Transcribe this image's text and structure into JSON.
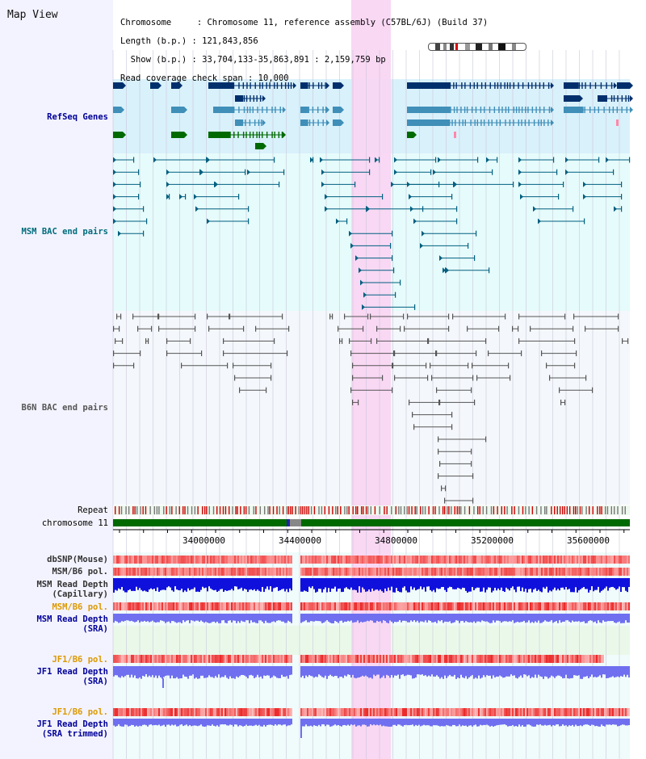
{
  "header": {
    "title": "Map View",
    "lines": [
      "Chromosome     : Chromosome 11, reference assembly (C57BL/6J) (Build 37)",
      "Length (b.p.) : 121,843,856",
      "  Show (b.p.) : 33,704,133-35,863,891 : 2,159,759 bp",
      "Read coverage check span : 10,000"
    ]
  },
  "axis": {
    "ticks": [
      "34000000",
      "34400000",
      "34800000",
      "35200000",
      "35600000"
    ]
  },
  "tracks": {
    "refseq": "RefSeq Genes",
    "msm_bac": "MSM BAC end pairs",
    "b6n_bac": "B6N BAC end pairs",
    "repeat": "Repeat",
    "chromosome": "chromosome 11",
    "dbsnp": "dbSNP(Mouse)",
    "msm_b6_pol_1": "MSM/B6 pol.",
    "msm_depth_cap": "MSM Read Depth\n(Capillary)",
    "msm_b6_pol_2": "MSM/B6 pol.",
    "msm_depth_sra": "MSM Read Depth\n(SRA)",
    "jf1_b6_pol_1": "JF1/B6 pol.",
    "jf1_depth_sra": "JF1 Read Depth\n(SRA)",
    "jf1_b6_pol_2": "JF1/B6 pol.",
    "jf1_depth_trim": "JF1 Read Depth\n(SRA trimmed)"
  },
  "colors": {
    "highlight": "#f9d6f3",
    "refseq_bg": "#d9f1fb",
    "bac_bg": "#e6fbfb",
    "gene_dark": "#002f6c",
    "gene_mid": "#3f8fb8",
    "gene_green": "#006a00",
    "msm_line": "#005f80",
    "b6n_line": "#555555",
    "snp_red": "#ee3333",
    "depth_blue": "#1010dd",
    "depth_light": "#6f6ff0"
  }
}
